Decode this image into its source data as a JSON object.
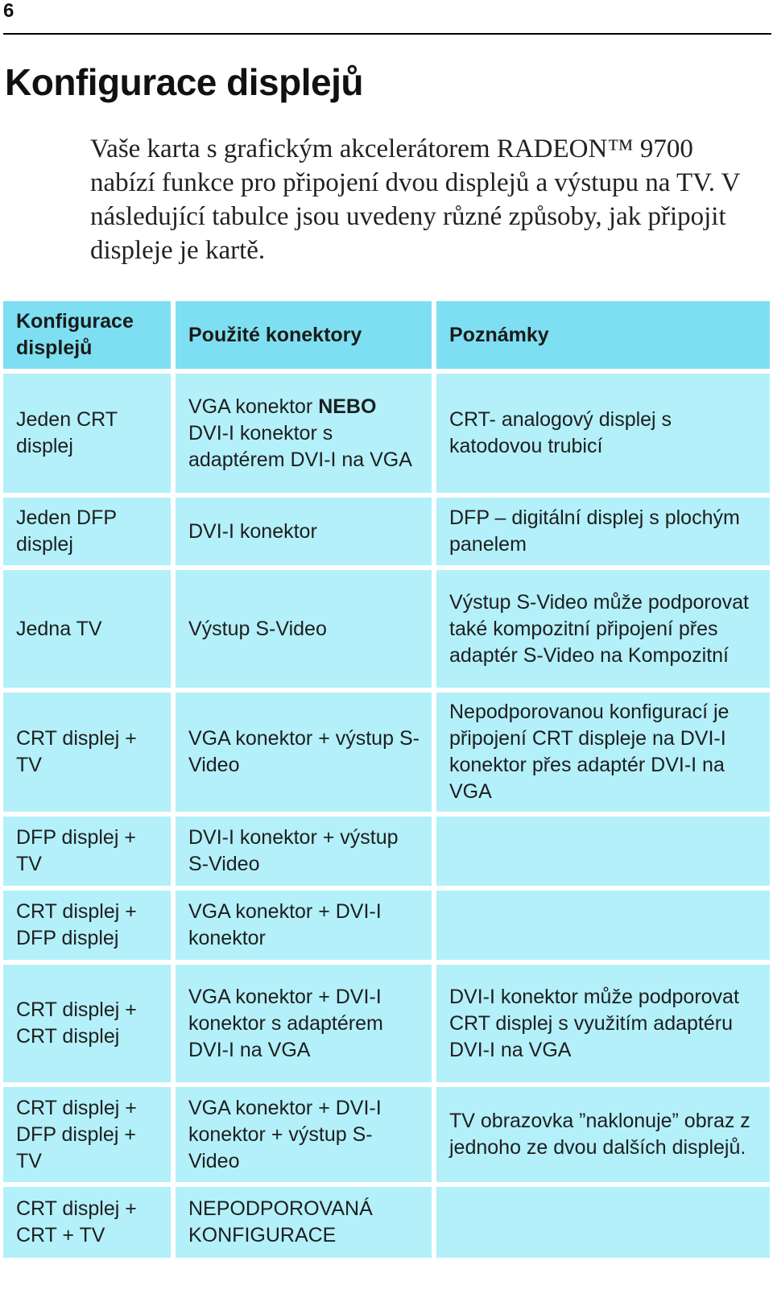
{
  "page_number": "6",
  "title": "Konfigurace displejů",
  "intro": "Vaše karta s grafickým akcelerátorem RADEON™ 9700 nabízí funkce pro připojení dvou displejů a výstupu na TV. V následující tabulce jsou uvedeny různé způsoby, jak připojit displeje je kartě.",
  "table": {
    "headers": [
      "Konfigurace displejů",
      "Použité konektory",
      "Poznámky"
    ],
    "rows": [
      {
        "config": "Jeden CRT displej",
        "connectors_a": "VGA konektor ",
        "connectors_bold": "NEBO",
        "connectors_b": " DVI-I konektor s adaptérem DVI-I na VGA",
        "notes": "CRT- analogový displej s katodovou trubicí"
      },
      {
        "config": "Jeden DFP displej",
        "connectors": "DVI-I konektor",
        "notes": "DFP – digitální displej s plochým panelem"
      },
      {
        "config": "Jedna TV",
        "connectors": "Výstup S-Video",
        "notes": "Výstup S-Video může podporovat také kompozitní připojení přes adaptér S-Video na Kompozitní"
      },
      {
        "config": "CRT displej + TV",
        "connectors": "VGA konektor + výstup S-Video",
        "notes": "Nepodporovanou konfigurací je připojení CRT displeje na DVI-I konektor přes adaptér DVI-I na VGA"
      },
      {
        "config": "DFP displej + TV",
        "connectors": "DVI-I konektor + výstup S-Video",
        "notes": ""
      },
      {
        "config": "CRT displej + DFP displej",
        "connectors": "VGA konektor + DVI-I konektor",
        "notes": ""
      },
      {
        "config": "CRT displej + CRT displej",
        "connectors": "VGA konektor + DVI-I konektor s adaptérem DVI-I na VGA",
        "notes": "DVI-I konektor může podporovat CRT displej s využitím adaptéru DVI-I na VGA"
      },
      {
        "config": "CRT displej + DFP displej + TV",
        "connectors": "VGA konektor + DVI-I konektor + výstup S-Video",
        "notes": "TV obrazovka ”naklonuje” obraz z jednoho ze dvou dalších displejů."
      },
      {
        "config": "CRT displej + CRT + TV",
        "connectors": "NEPODPOROVANÁ KONFIGURACE",
        "notes": ""
      }
    ]
  },
  "colors": {
    "header_bg": "#7fdff2",
    "cell_bg": "#b3f0fa"
  }
}
